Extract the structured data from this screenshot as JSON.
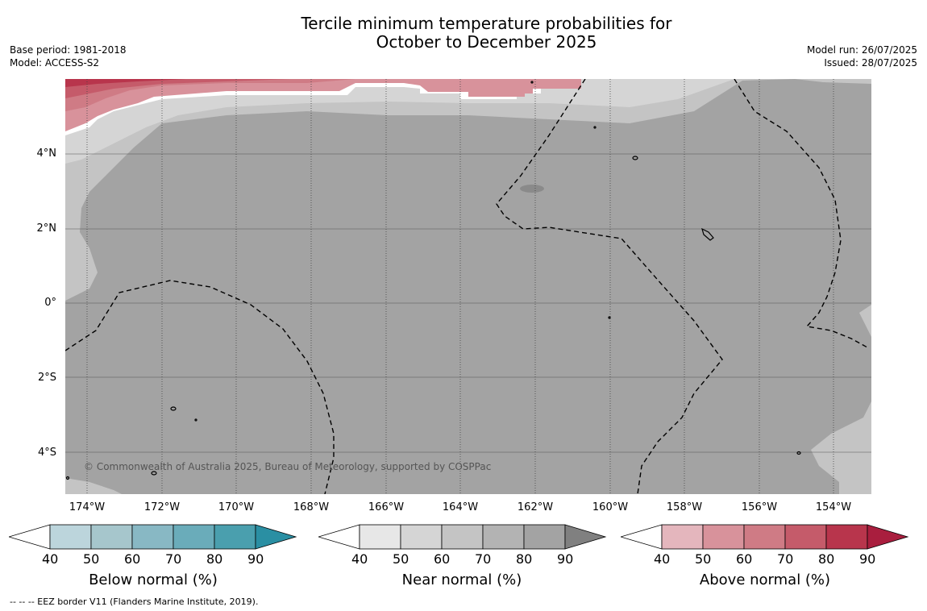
{
  "title": {
    "line1": "Tercile minimum temperature probabilities for",
    "line2": "October to December 2025"
  },
  "meta": {
    "base_period": "Base period: 1981-2018",
    "model": "Model: ACCESS-S2",
    "model_run": "Model run: 26/07/2025",
    "issued": "Issued: 28/07/2025"
  },
  "map": {
    "lat_labels": [
      "4°N",
      "2°N",
      "0°",
      "2°S",
      "4°S"
    ],
    "lon_labels": [
      "174°W",
      "172°W",
      "170°W",
      "168°W",
      "166°W",
      "164°W",
      "162°W",
      "160°W",
      "158°W",
      "156°W",
      "154°W"
    ],
    "copyright": "© Commonwealth of Australia 2025, Bureau of Meteorology, supported by COSPPac",
    "base_color": "#a3a3a3",
    "ocean_note_layers": [
      "near-normal 80-90 dominant"
    ]
  },
  "colorbars": [
    {
      "title": "Below normal (%)",
      "ticks": [
        "40",
        "50",
        "60",
        "70",
        "80",
        "90"
      ],
      "colors": [
        "#bcd5dc",
        "#a6c6cc",
        "#88b8c4",
        "#6aacba",
        "#4a9fae",
        "#2a8fa3"
      ]
    },
    {
      "title": "Near normal (%)",
      "ticks": [
        "40",
        "50",
        "60",
        "70",
        "80",
        "90"
      ],
      "colors": [
        "#e7e7e7",
        "#d5d5d5",
        "#c4c4c4",
        "#b3b3b3",
        "#a3a3a3",
        "#808080"
      ]
    },
    {
      "title": "Above normal (%)",
      "ticks": [
        "40",
        "50",
        "60",
        "70",
        "80",
        "90"
      ],
      "colors": [
        "#e4b6bd",
        "#d8929b",
        "#cf7b85",
        "#c55b6a",
        "#b8354c",
        "#a91e3e"
      ]
    }
  ],
  "footnote": "--  --  -- EEZ border V11 (Flanders Marine Institute, 2019)."
}
